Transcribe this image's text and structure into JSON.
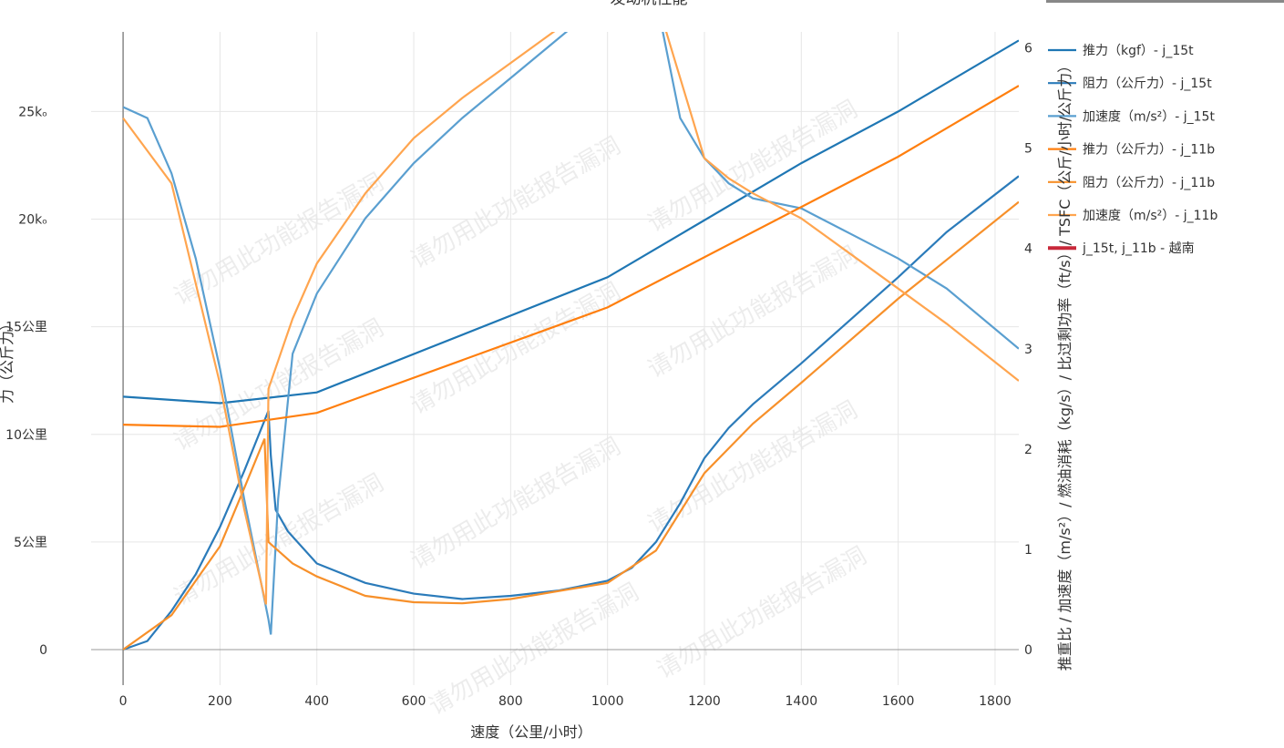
{
  "chart_data": {
    "type": "line",
    "title": "发动机性能",
    "x_label": "速度（公里/小时）",
    "y_label": "力（公斤力）",
    "y2_label": "推重比 / 加速度（m/s²）/ 燃油消耗（kg/s）/ 比过剩功率（ft/s）/ TSFC（公斤/小时/公斤力）",
    "watermark": "请勿用此功能报告漏洞",
    "xlim": [
      -66,
      1849
    ],
    "ylim": [
      -1650,
      28700
    ],
    "y2lim": [
      -0.355,
      6.16
    ],
    "xticks": [
      0,
      200,
      400,
      600,
      800,
      1000,
      1200,
      1400,
      1600,
      1800
    ],
    "yticks": [
      0,
      {
        "value": 5000,
        "label": "5公里"
      },
      {
        "value": 10000,
        "label": "10公里"
      },
      {
        "value": 15000,
        "label": "15公里"
      },
      {
        "value": 20000,
        "label": "20kₒ"
      },
      {
        "value": 25000,
        "label": "25kₒ"
      }
    ],
    "y2ticks": [
      0,
      1,
      2,
      3,
      4,
      5,
      6
    ],
    "grid": true,
    "series": [
      {
        "name": "推力（kgf）- j_15t",
        "color": "#1f77b4",
        "axis": "y",
        "x": [
          0,
          200,
          400,
          1000,
          1400,
          1600,
          1849
        ],
        "values": [
          11750,
          11450,
          11950,
          17300,
          22600,
          25000,
          28300
        ]
      },
      {
        "name": "阻力（公斤力）- j_15t",
        "color": "#2b7bba",
        "axis": "y",
        "x": [
          0,
          50,
          100,
          150,
          200,
          250,
          300,
          305,
          315,
          340,
          400,
          500,
          600,
          700,
          800,
          900,
          1000,
          1050,
          1100,
          1150,
          1200,
          1250,
          1300,
          1400,
          1500,
          1600,
          1700,
          1849
        ],
        "values": [
          0,
          400,
          1800,
          3500,
          5700,
          8300,
          11100,
          9000,
          6500,
          5500,
          4000,
          3100,
          2600,
          2350,
          2500,
          2750,
          3200,
          3800,
          5000,
          6800,
          8900,
          10300,
          11400,
          13300,
          15300,
          17300,
          19400,
          22000
        ]
      },
      {
        "name": "加速度（m/s²）- j_15t",
        "color": "#5a9fd0",
        "axis": "y2",
        "x": [
          0,
          50,
          100,
          150,
          200,
          250,
          300,
          305,
          320,
          350,
          400,
          500,
          600,
          700,
          800,
          900,
          1000,
          1100,
          1150,
          1200,
          1250,
          1300,
          1400,
          1500,
          1600,
          1700,
          1849
        ],
        "values": [
          5.41,
          5.3,
          4.75,
          3.9,
          2.8,
          1.5,
          0.3,
          0.15,
          1.5,
          2.95,
          3.55,
          4.3,
          4.85,
          5.3,
          5.7,
          6.1,
          6.5,
          6.5,
          5.3,
          4.9,
          4.65,
          4.5,
          4.4,
          4.15,
          3.9,
          3.6,
          3.0
        ]
      },
      {
        "name": "推力（公斤力）- j_11b",
        "color": "#ff7f0e",
        "axis": "y",
        "x": [
          0,
          200,
          400,
          1000,
          1600,
          1849
        ],
        "values": [
          10450,
          10350,
          11000,
          15900,
          22900,
          26200
        ]
      },
      {
        "name": "阻力（公斤力）- j_11b",
        "color": "#f7902a",
        "axis": "y",
        "x": [
          0,
          100,
          200,
          250,
          292,
          300,
          350,
          400,
          500,
          600,
          700,
          800,
          1000,
          1100,
          1200,
          1300,
          1400,
          1600,
          1849
        ],
        "values": [
          0,
          1600,
          4800,
          7500,
          9800,
          5000,
          4000,
          3400,
          2500,
          2200,
          2150,
          2350,
          3100,
          4600,
          8200,
          10500,
          12400,
          16300,
          20800
        ]
      },
      {
        "name": "加速度（m/s²）- j_11b",
        "color": "#ffa54f",
        "axis": "y2",
        "x": [
          0,
          100,
          200,
          250,
          295,
          300,
          350,
          400,
          500,
          600,
          700,
          800,
          900,
          1100,
          1200,
          1250,
          1300,
          1400,
          1500,
          1600,
          1700,
          1849
        ],
        "values": [
          5.3,
          4.65,
          2.65,
          1.4,
          0.45,
          2.6,
          3.3,
          3.85,
          4.55,
          5.1,
          5.5,
          5.85,
          6.2,
          6.5,
          4.9,
          4.7,
          4.55,
          4.3,
          3.95,
          3.6,
          3.25,
          2.68
        ]
      }
    ],
    "legend_only": [
      {
        "name": "j_15t, j_11b - 越南",
        "color": "#c8283a"
      }
    ]
  }
}
